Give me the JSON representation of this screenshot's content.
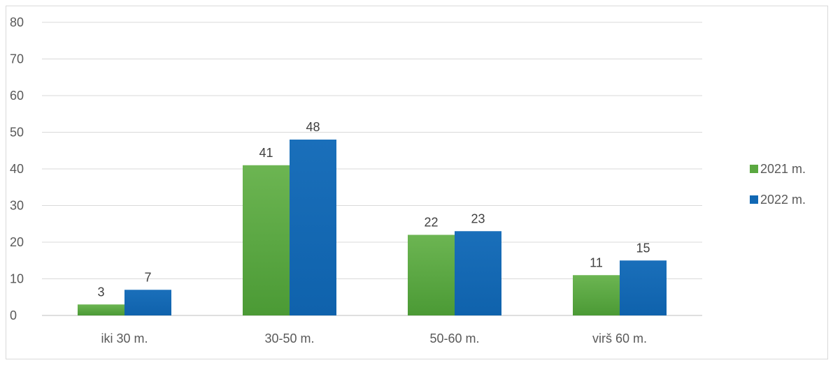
{
  "chart_data": {
    "type": "bar",
    "categories": [
      "iki 30 m.",
      "30-50 m.",
      "50-60 m.",
      "virš 60 m."
    ],
    "series": [
      {
        "name": "2021 m.",
        "values": [
          3,
          41,
          22,
          11
        ],
        "color": "#5aa840"
      },
      {
        "name": "2022 m.",
        "values": [
          7,
          48,
          23,
          15
        ],
        "color": "#1168b4"
      }
    ],
    "yticks": [
      "0",
      "10",
      "20",
      "30",
      "40",
      "50",
      "60",
      "70",
      "80"
    ],
    "ylim": [
      0,
      80
    ],
    "grid": true,
    "legend_position": "right",
    "title": "",
    "xlabel": "",
    "ylabel": ""
  }
}
